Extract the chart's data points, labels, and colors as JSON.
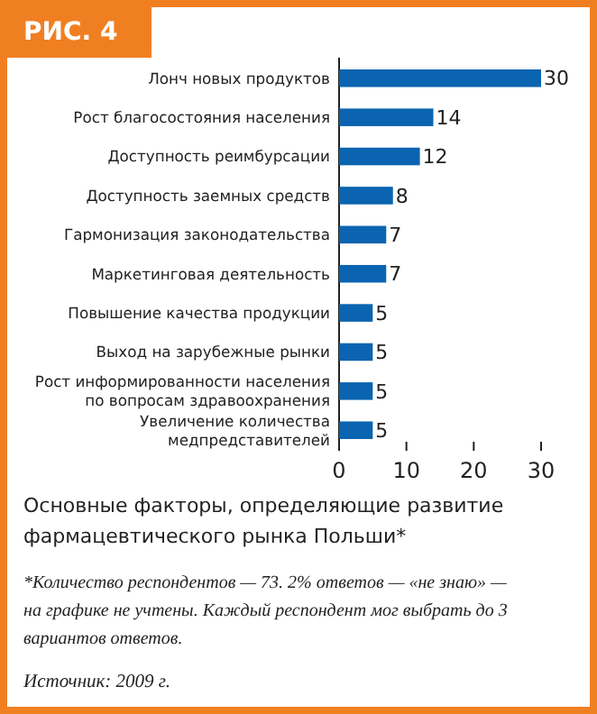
{
  "chart_data": {
    "type": "bar",
    "orientation": "horizontal",
    "title": "Основные факторы, определяющие развитие фармацевтического рынка Польши*",
    "categories": [
      "Лонч новых продуктов",
      "Рост благосостояния населения",
      "Доступность реимбурсации",
      "Доступность заемных средств",
      "Гармонизация законодательства",
      "Маркетинговая деятельность",
      "Повышение качества продукции",
      "Выход на зарубежные рынки",
      "Рост информированности населения по вопросам здравоохранения",
      "Увеличение количества медпредставителей"
    ],
    "values": [
      30,
      14,
      12,
      8,
      7,
      7,
      5,
      5,
      5,
      5
    ],
    "color": "#0a64b0",
    "data_labels": true,
    "xlim": [
      0,
      30
    ],
    "xticks": [
      0,
      10,
      20,
      30
    ],
    "grid": false,
    "annotations": [
      "РИС. 4",
      "*Количество респондентов — 73. 2% ответов — «не знаю» — на графике не учтены. Каждый респондент мог выбрать до 3 вариантов ответов.",
      "Источник: 2009 г."
    ]
  }
}
